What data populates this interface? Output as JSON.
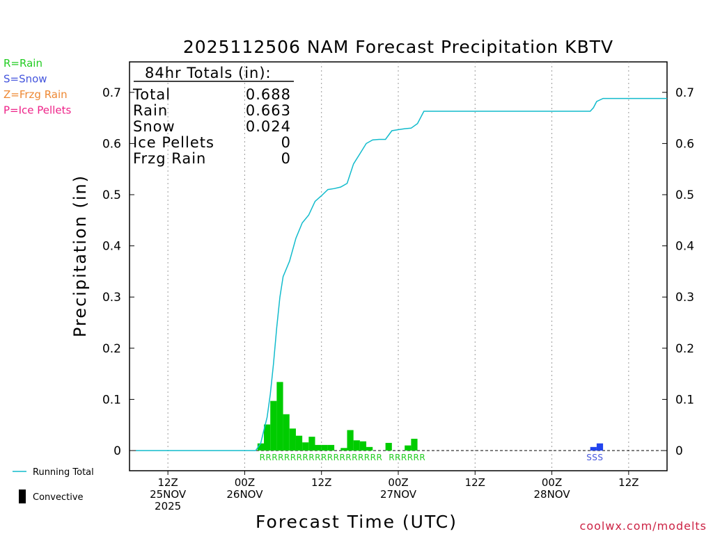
{
  "chart_data": {
    "type": "bar+line",
    "title": "2025112506 NAM Forecast Precipitation KBTV",
    "ylabel": "Precipitation (in)",
    "xlabel": "Forecast Time (UTC)",
    "ylim": [
      0,
      0.75
    ],
    "yticks": [
      0,
      0.1,
      0.2,
      0.3,
      0.4,
      0.5,
      0.6,
      0.7
    ],
    "ytick_labels": [
      "0",
      "0.1",
      "0.2",
      "0.3",
      "0.4",
      "0.5",
      "0.6",
      "0.7"
    ],
    "xlim_hours": [
      -18,
      66
    ],
    "xticks": [
      {
        "hour": -12,
        "lines": [
          "12Z",
          "25NOV",
          "2025"
        ]
      },
      {
        "hour": 0,
        "lines": [
          "00Z",
          "26NOV"
        ]
      },
      {
        "hour": 12,
        "lines": [
          "12Z"
        ]
      },
      {
        "hour": 24,
        "lines": [
          "00Z",
          "27NOV"
        ]
      },
      {
        "hour": 36,
        "lines": [
          "12Z"
        ]
      },
      {
        "hour": 48,
        "lines": [
          "00Z",
          "28NOV"
        ]
      },
      {
        "hour": 60,
        "lines": [
          "12Z"
        ]
      }
    ],
    "totals": {
      "heading": "84hr Totals (in):",
      "rows": [
        {
          "label": "Total",
          "value": "0.688"
        },
        {
          "label": "Rain",
          "value": "0.663"
        },
        {
          "label": "Snow",
          "value": "0.024"
        },
        {
          "label": "Ice Pellets",
          "value": "0"
        },
        {
          "label": "Frzg Rain",
          "value": "0"
        }
      ]
    },
    "ptype_legend": [
      {
        "label": "R=Rain",
        "color": "#22cc22"
      },
      {
        "label": "S=Snow",
        "color": "#4455dd"
      },
      {
        "label": "Z=Frzg Rain",
        "color": "#ee8833"
      },
      {
        "label": "P=Ice Pellets",
        "color": "#ee2288"
      }
    ],
    "series": [
      {
        "name": "Rain",
        "kind": "bar",
        "color": "#00cc00",
        "bar_width_hours": 1,
        "hours": [
          2,
          3,
          4,
          5,
          6,
          7,
          8,
          9,
          10,
          11,
          12,
          13,
          15,
          16,
          17,
          18,
          19,
          22,
          25,
          26
        ],
        "values": [
          0.014,
          0.051,
          0.097,
          0.134,
          0.071,
          0.043,
          0.029,
          0.016,
          0.027,
          0.011,
          0.011,
          0.011,
          0.005,
          0.04,
          0.02,
          0.018,
          0.007,
          0.015,
          0.01,
          0.023
        ]
      },
      {
        "name": "Snow",
        "kind": "bar",
        "color": "#2244ee",
        "bar_width_hours": 1,
        "hours": [
          54,
          55
        ],
        "values": [
          0.007,
          0.014
        ]
      },
      {
        "name": "Running Total",
        "kind": "line",
        "color": "#11bbcc",
        "x": [
          -17,
          1.7,
          2.5,
          3,
          3.5,
          4,
          4.5,
          5,
          5.5,
          6,
          7,
          8,
          9,
          10,
          11,
          12,
          13,
          14,
          15,
          16,
          17,
          18,
          19,
          20,
          21,
          22,
          23,
          24,
          25,
          26,
          27,
          28,
          29,
          30,
          40,
          50,
          52,
          53,
          54,
          54.5,
          55,
          56,
          66
        ],
        "y": [
          0,
          0,
          0.014,
          0.04,
          0.065,
          0.11,
          0.17,
          0.24,
          0.3,
          0.34,
          0.37,
          0.415,
          0.445,
          0.46,
          0.487,
          0.498,
          0.51,
          0.512,
          0.515,
          0.522,
          0.56,
          0.58,
          0.6,
          0.607,
          0.608,
          0.608,
          0.625,
          0.627,
          0.629,
          0.63,
          0.639,
          0.663,
          0.663,
          0.663,
          0.663,
          0.663,
          0.663,
          0.663,
          0.663,
          0.67,
          0.682,
          0.688,
          0.688
        ]
      }
    ],
    "ptype_strips": [
      {
        "text": "RRRRRRRRRRRRRRRRRRRR",
        "color": "#22cc22",
        "start_hour": 2.3
      },
      {
        "text": "RRRRRR",
        "color": "#22cc22",
        "start_hour": 22.5
      },
      {
        "text": "SSS",
        "color": "#4455dd",
        "start_hour": 53.4
      }
    ],
    "bottom_legend": [
      {
        "label": "Running Total",
        "kind": "line",
        "color": "#11bbcc"
      },
      {
        "label": "Convective",
        "kind": "bar",
        "color": "#000000"
      }
    ],
    "credit": "coolwx.com/modelts"
  }
}
